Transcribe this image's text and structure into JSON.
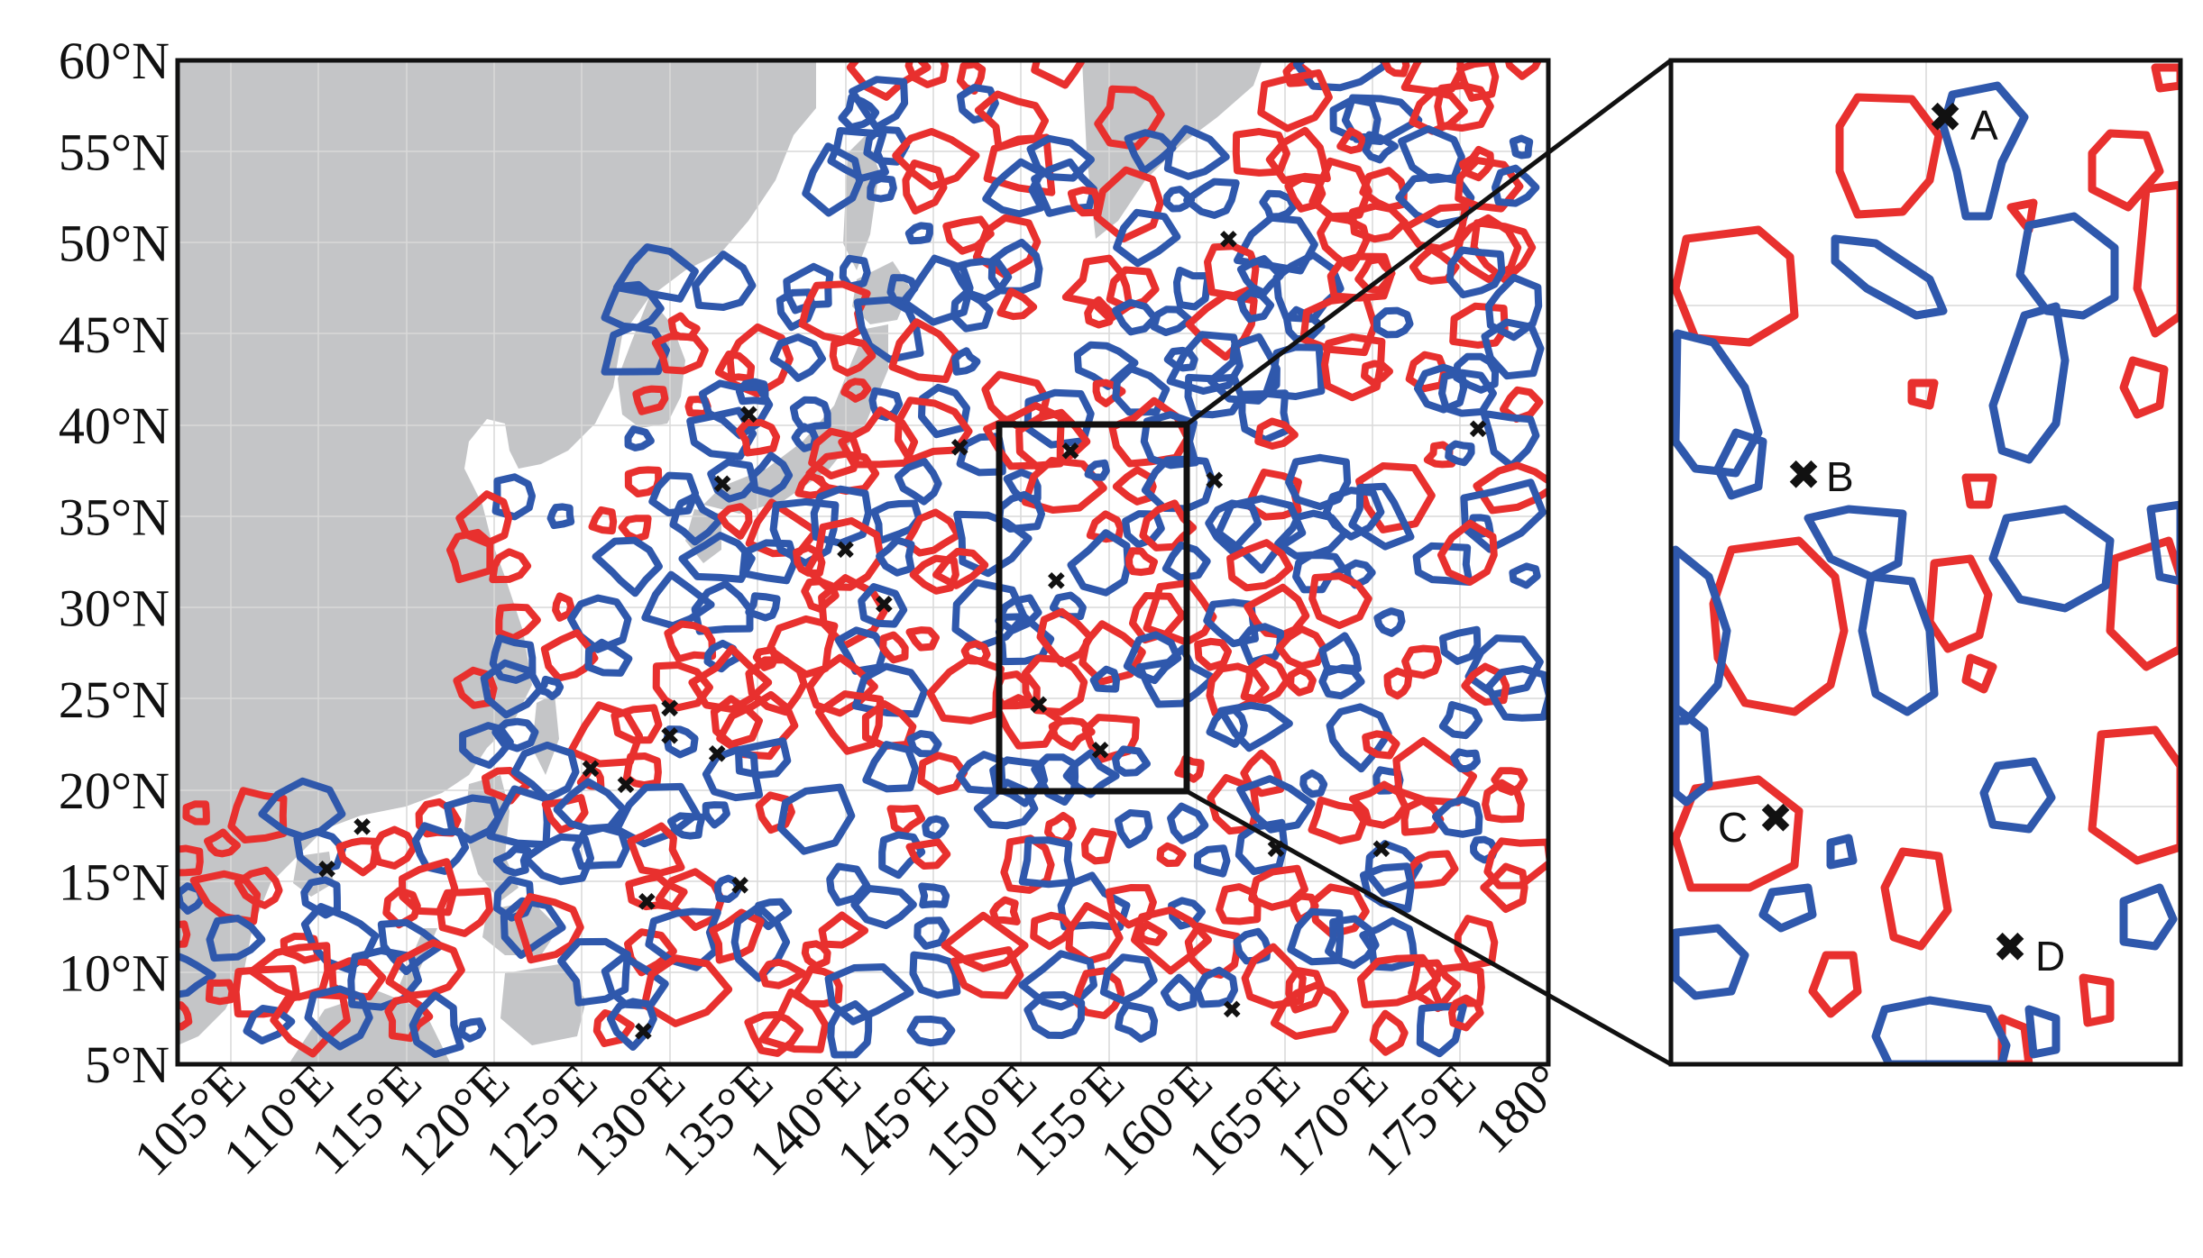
{
  "map": {
    "region": {
      "lon_min": 102,
      "lon_max": 180,
      "lat_min": 5,
      "lat_max": 60
    },
    "lat_ticks": [
      {
        "value": 60,
        "label": "60°N"
      },
      {
        "value": 55,
        "label": "55°N"
      },
      {
        "value": 50,
        "label": "50°N"
      },
      {
        "value": 45,
        "label": "45°N"
      },
      {
        "value": 40,
        "label": "40°N"
      },
      {
        "value": 35,
        "label": "35°N"
      },
      {
        "value": 30,
        "label": "30°N"
      },
      {
        "value": 25,
        "label": "25°N"
      },
      {
        "value": 20,
        "label": "20°N"
      },
      {
        "value": 15,
        "label": "15°N"
      },
      {
        "value": 10,
        "label": "10°N"
      },
      {
        "value": 5,
        "label": "5°N"
      }
    ],
    "lon_ticks": [
      {
        "value": 105,
        "label": "105°E"
      },
      {
        "value": 110,
        "label": "110°E"
      },
      {
        "value": 115,
        "label": "115°E"
      },
      {
        "value": 120,
        "label": "120°E"
      },
      {
        "value": 125,
        "label": "125°E"
      },
      {
        "value": 130,
        "label": "130°E"
      },
      {
        "value": 135,
        "label": "135°E"
      },
      {
        "value": 140,
        "label": "140°E"
      },
      {
        "value": 145,
        "label": "145°E"
      },
      {
        "value": 150,
        "label": "150°E"
      },
      {
        "value": 155,
        "label": "155°E"
      },
      {
        "value": 160,
        "label": "160°E"
      },
      {
        "value": 165,
        "label": "165°E"
      },
      {
        "value": 170,
        "label": "170°E"
      },
      {
        "value": 175,
        "label": "175°E"
      },
      {
        "value": 180,
        "label": "180°"
      }
    ],
    "inset_box": {
      "lon_min": 148.5,
      "lon_max": 158.5,
      "lat_min": 20,
      "lat_max": 40
    },
    "colors": {
      "land": "#c4c5c7",
      "ocean": "#ffffff",
      "anticyclonic": "#e8302e",
      "cyclonic": "#2f58ac",
      "marker": "#111111"
    },
    "markers": [
      {
        "lon": 112.5,
        "lat": 18.0
      },
      {
        "lon": 110.5,
        "lat": 15.7
      },
      {
        "lon": 125.5,
        "lat": 21.2
      },
      {
        "lon": 127.5,
        "lat": 20.3
      },
      {
        "lon": 130.0,
        "lat": 24.5
      },
      {
        "lon": 130.0,
        "lat": 23.0
      },
      {
        "lon": 132.7,
        "lat": 22.0
      },
      {
        "lon": 128.7,
        "lat": 13.9
      },
      {
        "lon": 134.0,
        "lat": 14.8
      },
      {
        "lon": 128.5,
        "lat": 6.8
      },
      {
        "lon": 134.5,
        "lat": 40.6
      },
      {
        "lon": 133.0,
        "lat": 36.8
      },
      {
        "lon": 142.2,
        "lat": 30.2
      },
      {
        "lon": 140.0,
        "lat": 33.2
      },
      {
        "lon": 146.5,
        "lat": 38.8
      },
      {
        "lon": 152.8,
        "lat": 38.6
      },
      {
        "lon": 152.0,
        "lat": 31.5
      },
      {
        "lon": 151.0,
        "lat": 24.7
      },
      {
        "lon": 154.5,
        "lat": 22.2
      },
      {
        "lon": 161.0,
        "lat": 37.0
      },
      {
        "lon": 161.8,
        "lat": 50.2
      },
      {
        "lon": 164.5,
        "lat": 16.8
      },
      {
        "lon": 170.5,
        "lat": 16.8
      },
      {
        "lon": 176.0,
        "lat": 39.8
      },
      {
        "lon": 162.0,
        "lat": 8.0
      }
    ]
  },
  "inset": {
    "markers": [
      {
        "label": "A"
      },
      {
        "label": "B"
      },
      {
        "label": "C"
      },
      {
        "label": "D"
      }
    ]
  }
}
